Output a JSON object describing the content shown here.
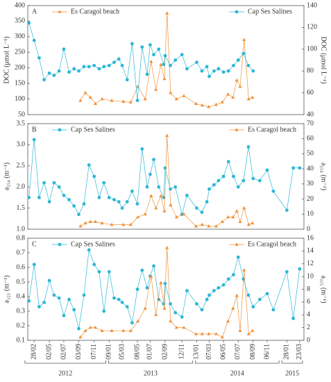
{
  "chart_data": [
    {
      "type": "line",
      "label": "A",
      "ylabel": "DOC (μmol L⁻¹)",
      "y2label": "DOC (μmol L⁻¹)",
      "ylim": [
        50,
        400
      ],
      "yticks": [
        50,
        100,
        150,
        200,
        250,
        300,
        350,
        400
      ],
      "y2lim": [
        40,
        140
      ],
      "y2ticks": [
        40,
        60,
        80,
        100,
        120,
        140
      ],
      "series": [
        {
          "name": "Es Caragol beach",
          "color": "#f0923a",
          "marker": "triangle",
          "axis": "y",
          "x": [
            "2012-09-10",
            "2012-10-01",
            "2012-10-22",
            "2012-11-12",
            "2012-12-10",
            "2013-01-20",
            "2013-03-10",
            "2013-04-10",
            "2013-05-10",
            "2013-06-10",
            "2013-07-05",
            "2013-07-25",
            "2013-08-15",
            "2013-08-30",
            "2013-09-10",
            "2013-09-25",
            "2013-10-20",
            "2013-11-20",
            "2014-01-10",
            "2014-02-05",
            "2014-03-05",
            "2014-04-05",
            "2014-05-01",
            "2014-05-25",
            "2014-06-15",
            "2014-07-01",
            "2014-07-15",
            "2014-08-01",
            "2014-08-20",
            "2014-09-05"
          ],
          "values": [
            95,
            120,
            105,
            85,
            100,
            95,
            92,
            90,
            140,
            100,
            220,
            130,
            210,
            165,
            375,
            120,
            100,
            110,
            85,
            80,
            75,
            82,
            90,
            115,
            105,
            160,
            140,
            290,
            100,
            105
          ]
        },
        {
          "name": "Cap Ses Salines",
          "color": "#2bb7d6",
          "marker": "circle",
          "axis": "y2",
          "x": [
            "2012-02-06",
            "2012-02-28",
            "2012-03-20",
            "2012-04-10",
            "2012-05-02",
            "2012-05-22",
            "2012-06-12",
            "2012-07-02",
            "2012-07-24",
            "2012-08-14",
            "2012-09-03",
            "2012-09-25",
            "2012-10-16",
            "2012-11-07",
            "2012-11-28",
            "2012-12-18",
            "2013-01-09",
            "2013-01-30",
            "2013-02-19",
            "2013-03-05",
            "2013-03-26",
            "2013-04-16",
            "2013-05-08",
            "2013-05-28",
            "2013-06-18",
            "2013-07-01",
            "2013-07-16",
            "2013-08-06",
            "2013-08-27",
            "2013-09-02",
            "2013-09-24",
            "2013-10-15",
            "2013-11-12",
            "2013-12-03",
            "2014-01-13",
            "2014-02-04",
            "2014-02-25",
            "2014-03-07",
            "2014-03-27",
            "2014-04-15",
            "2014-05-06",
            "2014-05-27",
            "2014-06-17",
            "2014-07-07",
            "2014-07-29",
            "2014-08-19",
            "2014-09-08"
          ],
          "values": [
            124,
            108,
            92,
            72,
            78,
            76,
            80,
            100,
            79,
            82,
            80,
            84,
            84,
            85,
            82,
            84,
            85,
            88,
            91,
            85,
            72,
            105,
            53,
            102,
            77,
            104,
            95,
            100,
            86,
            94,
            85,
            90,
            95,
            82,
            88,
            80,
            84,
            75,
            80,
            82,
            79,
            80,
            85,
            90,
            96,
            85,
            80
          ]
        }
      ]
    },
    {
      "type": "line",
      "label": "B",
      "ylabel": "a₂₅₄ (m⁻¹)",
      "y2label": "a₂₅₄ (m⁻¹)",
      "ylim": [
        1,
        3.5
      ],
      "yticks": [
        {
          "value": 1,
          "label": "1.0"
        },
        1.5,
        {
          "value": 2,
          "label": "2.0"
        },
        2.5,
        {
          "value": 3,
          "label": "3.0"
        },
        3.5
      ],
      "y2lim": [
        0,
        70
      ],
      "y2ticks": [
        0,
        10,
        20,
        30,
        40,
        50,
        60,
        70
      ],
      "series": [
        {
          "name": "Cap Ses Salines",
          "color": "#2bb7d6",
          "marker": "circle",
          "axis": "y",
          "x": [
            "2012-02-06",
            "2012-02-28",
            "2012-03-20",
            "2012-04-10",
            "2012-05-02",
            "2012-05-22",
            "2012-06-12",
            "2012-07-02",
            "2012-07-24",
            "2012-08-14",
            "2012-09-03",
            "2012-09-25",
            "2012-10-16",
            "2012-11-07",
            "2012-11-28",
            "2012-12-18",
            "2013-01-09",
            "2013-01-30",
            "2013-02-19",
            "2013-03-05",
            "2013-03-26",
            "2013-04-16",
            "2013-05-08",
            "2013-05-28",
            "2013-06-18",
            "2013-07-01",
            "2013-07-16",
            "2013-08-06",
            "2013-08-27",
            "2013-09-02",
            "2013-09-24",
            "2013-10-15",
            "2013-11-12",
            "2013-12-03",
            "2014-01-13",
            "2014-02-04",
            "2014-02-25",
            "2014-03-07",
            "2014-03-27",
            "2014-04-15",
            "2014-05-06",
            "2014-05-27",
            "2014-06-17",
            "2014-07-07",
            "2014-07-29",
            "2014-08-19",
            "2014-09-08",
            "2014-10-06",
            "2014-11-06",
            "2014-12-02",
            "2015-01-28",
            "2015-02-24",
            "2015-03-23"
          ],
          "values": [
            1.75,
            3.12,
            1.75,
            2.1,
            1.65,
            2.1,
            2.0,
            1.8,
            1.7,
            1.55,
            1.35,
            1.6,
            2.52,
            2.25,
            1.75,
            2.1,
            1.75,
            1.7,
            1.65,
            1.5,
            1.65,
            1.9,
            1.6,
            2.9,
            2.0,
            2.3,
            2.65,
            2.0,
            1.75,
            2.45,
            1.95,
            2.0,
            1.35,
            1.8,
            1.5,
            1.4,
            1.65,
            1.95,
            2.05,
            2.15,
            2.25,
            2.6,
            2.25,
            2.0,
            2.15,
            2.95,
            2.2,
            2.15,
            2.4,
            1.9,
            1.45,
            2.45,
            2.45
          ]
        },
        {
          "name": "Es Caragol beach",
          "color": "#f0923a",
          "marker": "triangle",
          "axis": "y2",
          "x": [
            "2012-09-10",
            "2012-10-01",
            "2012-10-22",
            "2012-11-12",
            "2012-12-10",
            "2013-01-20",
            "2013-03-10",
            "2013-04-10",
            "2013-05-10",
            "2013-06-10",
            "2013-07-05",
            "2013-07-25",
            "2013-08-15",
            "2013-08-30",
            "2013-09-10",
            "2013-09-25",
            "2013-10-20",
            "2013-11-20",
            "2014-01-10",
            "2014-02-05",
            "2014-03-05",
            "2014-04-05",
            "2014-05-01",
            "2014-05-25",
            "2014-06-15",
            "2014-07-01",
            "2014-07-15",
            "2014-08-01",
            "2014-08-20",
            "2014-09-05"
          ],
          "values": [
            2,
            4,
            5,
            5,
            4,
            3,
            3,
            3,
            8,
            10,
            22,
            14,
            22,
            12,
            62,
            16,
            8,
            10,
            2,
            3,
            2,
            2,
            5,
            8,
            8,
            12,
            5,
            14,
            3,
            4
          ]
        }
      ]
    },
    {
      "type": "line",
      "label": "C",
      "ylabel": "a₃₂₅ (m⁻¹)",
      "y2label": "a₃₂₅ (m⁻¹)",
      "ylim": [
        0.1,
        0.8
      ],
      "yticks": [
        0.1,
        0.2,
        0.3,
        0.4,
        0.5,
        0.6,
        0.7,
        0.8
      ],
      "y2lim": [
        0,
        16
      ],
      "y2ticks": [
        0,
        2,
        4,
        6,
        8,
        10,
        12,
        14,
        16
      ],
      "series": [
        {
          "name": "Cap Ses Salines",
          "color": "#2bb7d6",
          "marker": "circle",
          "axis": "y",
          "x": [
            "2012-02-06",
            "2012-02-28",
            "2012-03-20",
            "2012-04-10",
            "2012-05-02",
            "2012-05-22",
            "2012-06-12",
            "2012-07-02",
            "2012-07-24",
            "2012-08-14",
            "2012-09-03",
            "2012-09-25",
            "2012-10-16",
            "2012-11-07",
            "2012-11-28",
            "2012-12-18",
            "2013-01-09",
            "2013-01-30",
            "2013-02-19",
            "2013-03-05",
            "2013-03-26",
            "2013-04-16",
            "2013-05-08",
            "2013-05-28",
            "2013-06-18",
            "2013-07-01",
            "2013-07-16",
            "2013-08-06",
            "2013-08-27",
            "2013-09-02",
            "2013-09-24",
            "2013-10-15",
            "2013-11-12",
            "2013-12-03",
            "2014-01-13",
            "2014-02-04",
            "2014-02-25",
            "2014-03-07",
            "2014-03-27",
            "2014-04-15",
            "2014-05-06",
            "2014-05-27",
            "2014-06-17",
            "2014-07-07",
            "2014-07-29",
            "2014-08-19",
            "2014-09-08",
            "2014-10-06",
            "2014-11-06",
            "2014-12-02",
            "2015-01-28",
            "2015-02-24",
            "2015-03-23"
          ],
          "values": [
            0.37,
            0.62,
            0.33,
            0.36,
            0.51,
            0.41,
            0.39,
            0.27,
            0.38,
            0.31,
            0.18,
            0.41,
            0.72,
            0.62,
            0.57,
            0.3,
            0.57,
            0.39,
            0.38,
            0.36,
            0.33,
            0.22,
            0.45,
            0.58,
            0.46,
            0.54,
            0.61,
            0.38,
            0.35,
            0.49,
            0.35,
            0.29,
            0.26,
            0.44,
            0.35,
            0.31,
            0.38,
            0.41,
            0.44,
            0.46,
            0.48,
            0.52,
            0.55,
            0.67,
            0.52,
            0.41,
            0.33,
            0.38,
            0.42,
            0.31,
            0.57,
            0.25,
            0.59
          ]
        },
        {
          "name": "Es Caragol beach",
          "color": "#f0923a",
          "marker": "triangle",
          "axis": "y2",
          "x": [
            "2012-09-10",
            "2012-10-01",
            "2012-10-22",
            "2012-11-12",
            "2012-12-10",
            "2013-01-20",
            "2013-03-10",
            "2013-04-10",
            "2013-05-10",
            "2013-06-10",
            "2013-07-05",
            "2013-07-25",
            "2013-08-15",
            "2013-08-30",
            "2013-09-10",
            "2013-09-25",
            "2013-10-20",
            "2013-11-20",
            "2014-01-10",
            "2014-02-05",
            "2014-03-05",
            "2014-04-05",
            "2014-05-01",
            "2014-05-25",
            "2014-06-15",
            "2014-07-01",
            "2014-07-15",
            "2014-08-01",
            "2014-08-20",
            "2014-09-05"
          ],
          "values": [
            0.5,
            1.5,
            2,
            2,
            1.5,
            1.5,
            1.5,
            1.5,
            3,
            5,
            10,
            4,
            9,
            5,
            14.5,
            3,
            2,
            2,
            1,
            1,
            1,
            1,
            0.5,
            3,
            5,
            7,
            1.5,
            11,
            1,
            1.5
          ]
        }
      ],
      "xlim": [
        "2012-02-01",
        "2015-04-10"
      ],
      "xticks": [
        {
          "value": "2012-02-28",
          "label": "28/02"
        },
        {
          "value": "2012-05-02",
          "label": "02/05"
        },
        {
          "value": "2012-07-02",
          "label": "02/07"
        },
        {
          "value": "2012-09-03",
          "label": "03/09"
        },
        {
          "value": "2012-11-07",
          "label": "07/11"
        },
        {
          "value": "2013-01-09",
          "label": "09/01"
        },
        {
          "value": "2013-03-05",
          "label": "05/03"
        },
        {
          "value": "2013-05-08",
          "label": "08/05"
        },
        {
          "value": "2013-07-01",
          "label": "01/07"
        },
        {
          "value": "2013-09-02",
          "label": "02/09"
        },
        {
          "value": "2013-11-12",
          "label": "12/11"
        },
        {
          "value": "2014-01-13",
          "label": "13/01"
        },
        {
          "value": "2014-03-07",
          "label": "07/03"
        },
        {
          "value": "2014-05-06",
          "label": "06/05"
        },
        {
          "value": "2014-07-07",
          "label": "07/07"
        },
        {
          "value": "2014-09-08",
          "label": "08/09"
        },
        {
          "value": "2014-11-06",
          "label": "06/11"
        },
        {
          "value": "2015-01-28",
          "label": "28/01"
        },
        {
          "value": "2015-03-23",
          "label": "23/03"
        }
      ],
      "years": [
        "2012",
        "2013",
        "2014",
        "2015"
      ]
    }
  ]
}
